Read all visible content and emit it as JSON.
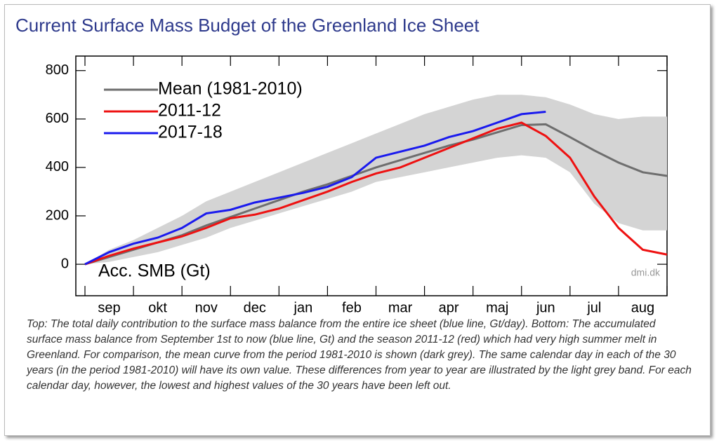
{
  "chart_data": {
    "type": "line",
    "title": "Current Surface Mass Budget of the Greenland Ice Sheet",
    "y_annotation": "Acc. SMB (Gt)",
    "source": "dmi.dk",
    "caption": "Top: The total daily contribution to the surface mass balance from the entire ice sheet (blue line, Gt/day). Bottom: The accumulated surface mass balance from September 1st to now (blue line, Gt) and the season 2011-12 (red) which had very high summer melt in Greenland. For comparison, the mean curve from the period 1981-2010 is shown (dark grey). The same calendar day in each of the 30 years (in the period 1981-2010) will have its own value. These differences from year to year are illustrated by the light grey band. For each calendar day, however, the lowest and highest values of the 30 years have been left out.",
    "categories": [
      null,
      "sep",
      null,
      "okt",
      null,
      "nov",
      null,
      "dec",
      null,
      "jan",
      null,
      "feb",
      null,
      "mar",
      null,
      "apr",
      null,
      "maj",
      null,
      "jun",
      null,
      "jul",
      null,
      "aug",
      null
    ],
    "ylim": [
      -130,
      860
    ],
    "yticks": [
      0,
      200,
      400,
      600,
      800
    ],
    "legend": "top-left",
    "band": {
      "color": "#d4d4d4",
      "lower": [
        0,
        10,
        30,
        50,
        80,
        110,
        150,
        180,
        210,
        240,
        270,
        300,
        340,
        360,
        380,
        400,
        420,
        440,
        450,
        440,
        380,
        250,
        170,
        140,
        140
      ],
      "upper": [
        0,
        60,
        100,
        150,
        200,
        260,
        300,
        340,
        380,
        420,
        460,
        500,
        540,
        580,
        620,
        650,
        680,
        700,
        700,
        690,
        660,
        620,
        600,
        610,
        610
      ]
    },
    "series": [
      {
        "name": "Mean (1981-2010)",
        "color": "#6e6e6e",
        "values": [
          0,
          30,
          60,
          90,
          120,
          160,
          195,
          230,
          265,
          300,
          330,
          365,
          400,
          430,
          460,
          490,
          515,
          545,
          575,
          578,
          525,
          470,
          420,
          380,
          365
        ]
      },
      {
        "name": "2011-12",
        "color": "#ee1111",
        "values": [
          0,
          35,
          65,
          90,
          115,
          150,
          190,
          205,
          230,
          265,
          300,
          340,
          375,
          400,
          440,
          480,
          520,
          560,
          585,
          530,
          440,
          280,
          150,
          60,
          40
        ]
      },
      {
        "name": "2017-18",
        "color": "#1a1aee",
        "values": [
          0,
          50,
          85,
          110,
          150,
          210,
          225,
          255,
          275,
          295,
          320,
          360,
          440,
          465,
          490,
          525,
          550,
          585,
          620,
          630,
          null,
          null,
          null,
          null,
          null
        ]
      }
    ]
  }
}
